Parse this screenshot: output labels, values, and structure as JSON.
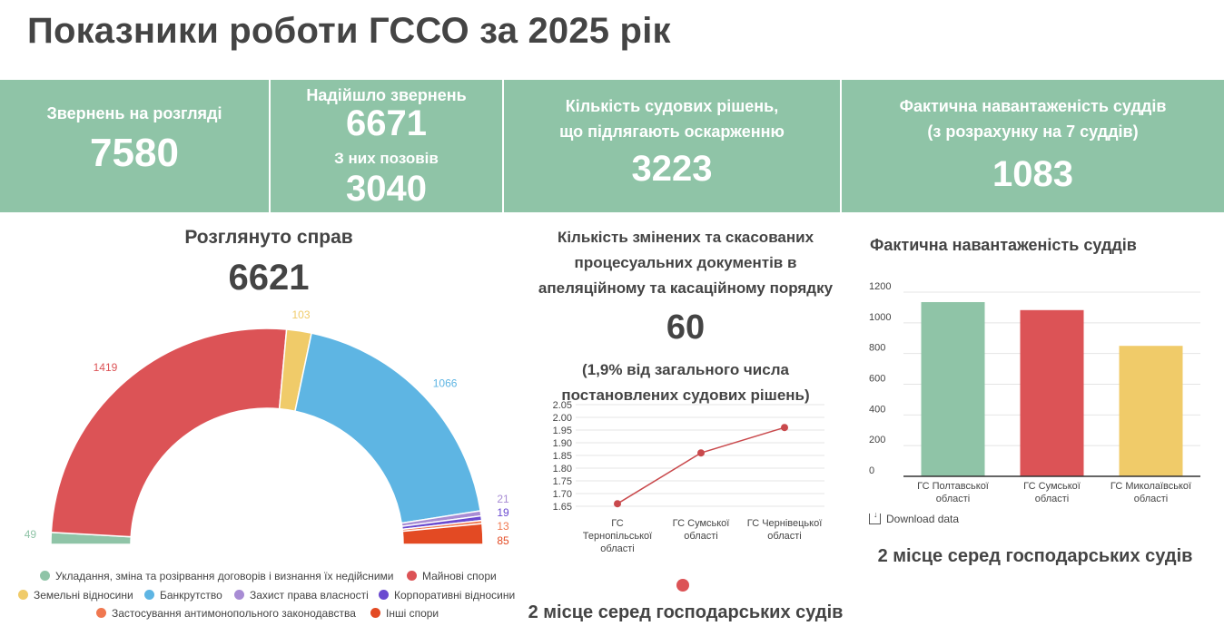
{
  "page_title": "Показники роботи ГССО за 2025 рік",
  "kpis": {
    "pending_label": "Звернень на розгляді",
    "pending_value": "7580",
    "received_label": "Надійшло звернень",
    "received_value": "6671",
    "lawsuits_label": "З них позовів",
    "lawsuits_value": "3040",
    "appealable_label_line1": "Кількість судових рішень,",
    "appealable_label_line2": "що підлягають оскарженню",
    "appealable_value": "3223",
    "workload_label_line1": "Фактична навантаженість суддів",
    "workload_label_line2": "(з розрахунку на 7 суддів)",
    "workload_value": "1083"
  },
  "cases_panel": {
    "title": "Розглянуто справ",
    "total": "6621"
  },
  "changed_panel": {
    "title_line1": "Кількість змінених та скасованих",
    "title_line2": "процесуальних документів в",
    "title_line3": "апеляційному та касаційному порядку",
    "value": "60",
    "note_line1": "(1,9% від загального числа",
    "note_line2": "постановлених судових рішень)",
    "rank": "2 місце серед господарських судів",
    "rank_dot_color": "#dc5356"
  },
  "workload_panel": {
    "title": "Фактична навантаженість суддів",
    "download_label": "Download data",
    "rank": "2 місце серед господарських судів"
  },
  "chart_data": [
    {
      "type": "pie",
      "variant": "half-donut",
      "categories": [
        "Укладання, зміна та розірвання договорів і визнання їх недійсними",
        "Майнові спори",
        "Земельні відносини",
        "Банкрутство",
        "Захист права власності",
        "Корпоративні відносини",
        "Застосування антимонопольного законодавства",
        "Інші спори"
      ],
      "values": [
        49,
        1419,
        103,
        1066,
        21,
        19,
        13,
        85
      ],
      "value_labels": [
        "49",
        "1419",
        "103",
        "1066",
        "21",
        "19",
        "13",
        "85"
      ],
      "colors": [
        "#8fc4a7",
        "#dc5356",
        "#f0cb69",
        "#5eb5e3",
        "#a88cd4",
        "#6a4ad0",
        "#f07850",
        "#e34a23"
      ],
      "legend_position": "bottom"
    },
    {
      "type": "line",
      "categories": [
        "ГС Тернопільської області",
        "ГС Сумської області",
        "ГС Чернівецької області"
      ],
      "x_label_lines": [
        [
          "ГС",
          "Тернопільської",
          "області"
        ],
        [
          "ГС Сумської",
          "області"
        ],
        [
          "ГС Чернівецької",
          "області"
        ]
      ],
      "values": [
        1.66,
        1.86,
        1.96
      ],
      "ylim": [
        1.65,
        2.05
      ],
      "yticks": [
        "1.65",
        "1.70",
        "1.75",
        "1.80",
        "1.85",
        "1.90",
        "1.95",
        "2.00",
        "2.05"
      ],
      "grid": true,
      "color": "#c9494c"
    },
    {
      "type": "bar",
      "categories": [
        "ГС Полтавської області",
        "ГС Сумської області",
        "ГС Миколаївської області"
      ],
      "x_label_lines": [
        [
          "ГС Полтавської",
          "області"
        ],
        [
          "ГС Сумської",
          "області"
        ],
        [
          "ГС Миколаївської",
          "області"
        ]
      ],
      "values": [
        1135,
        1083,
        850
      ],
      "colors": [
        "#8fc4a7",
        "#dc5356",
        "#f0cb69"
      ],
      "ylim": [
        0,
        1200
      ],
      "yticks": [
        "0",
        "200",
        "400",
        "600",
        "800",
        "1000",
        "1200"
      ],
      "grid": true
    }
  ]
}
